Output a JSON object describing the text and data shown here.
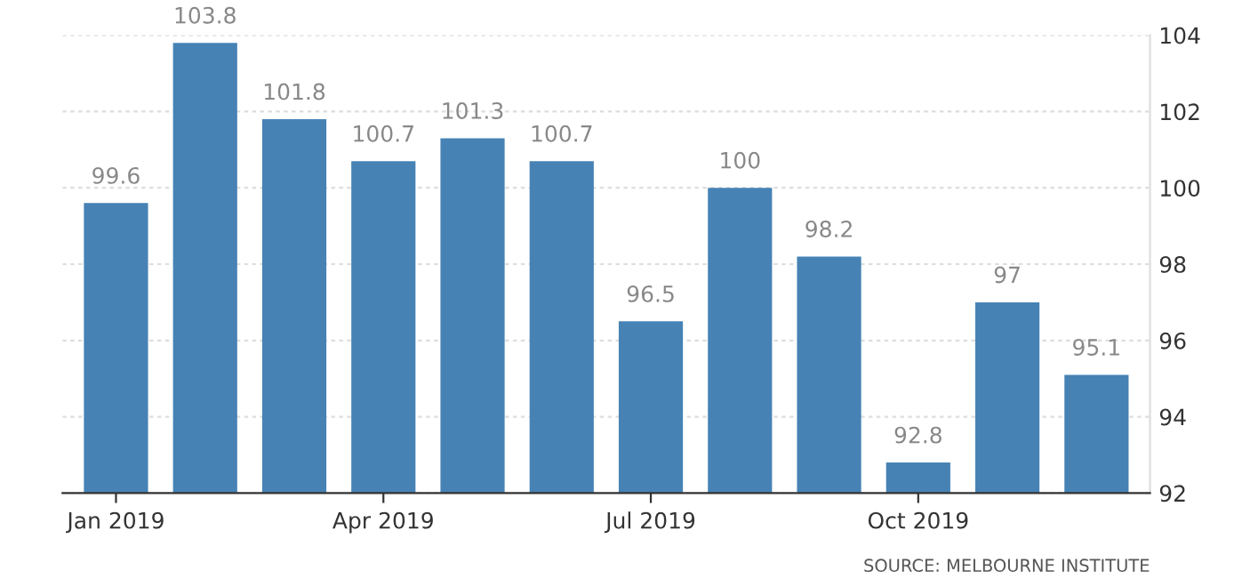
{
  "chart_data": {
    "type": "bar",
    "categories": [
      "Jan 2019",
      null,
      null,
      "Apr 2019",
      null,
      null,
      "Jul 2019",
      null,
      null,
      "Oct 2019",
      null,
      null
    ],
    "values": [
      99.6,
      103.8,
      101.8,
      100.7,
      101.3,
      100.7,
      96.5,
      100,
      98.2,
      92.8,
      97,
      95.1
    ],
    "color": "#4682b4",
    "ylim": [
      92,
      104
    ],
    "yticks": [
      92,
      94,
      96,
      98,
      100,
      102,
      104
    ],
    "grid": "y",
    "data_labels": true,
    "annotations": [
      "SOURCE: MELBOURNE INSTITUTE"
    ]
  }
}
